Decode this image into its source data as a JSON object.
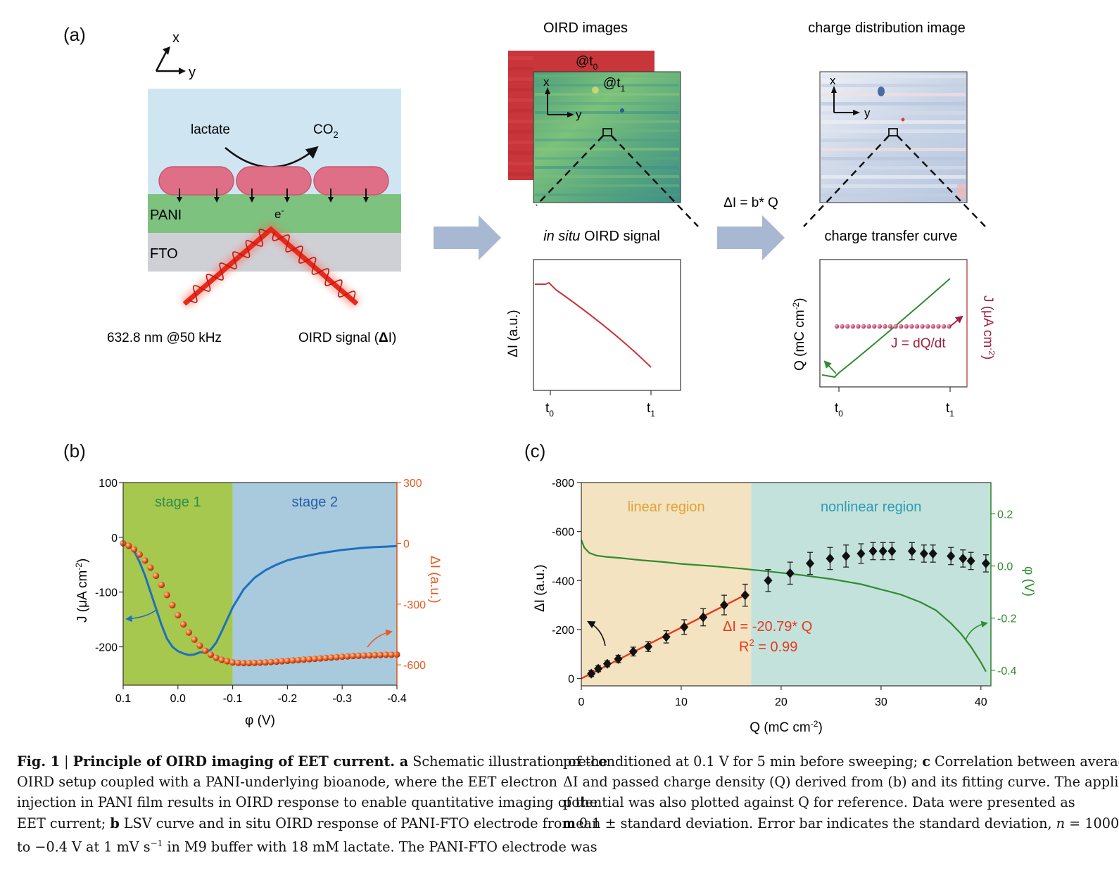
{
  "panel_a": {
    "label": "(a)",
    "axis_x": "x",
    "axis_y": "y",
    "lactate": "lactate",
    "co2": "CO",
    "co2_sub": "2",
    "pani": "PANI",
    "fto": "FTO",
    "electron": "e",
    "electron_sup": "-",
    "laser": "632.8 nm @50 kHz",
    "signal": "OIRD signal (",
    "signal_delta": "Δ",
    "signal_i": "I)",
    "oird_images_title": "OIRD images",
    "t0_label": "@t",
    "t0_sub": "0",
    "t1_label": "@t",
    "t1_sub": "1",
    "insitu_italic": "in situ",
    "insitu_rest": " OIRD signal",
    "insitu_ylabel": "ΔI (a.u.)",
    "tick_t": "t",
    "tick_sub0": "0",
    "tick_sub1": "1",
    "equation": "ΔI = b* Q",
    "charge_title": "charge distribution image",
    "ct_title": "charge transfer curve",
    "ct_ylabel_left": "Q (mC cm",
    "ct_ylabel_left_sup": "-2",
    "ct_ylabel_left_end": ")",
    "ct_ylabel_right": "J (μA cm",
    "ct_ylabel_right_sup": "-2",
    "ct_ylabel_right_end": ")",
    "j_eq": "J = dQ/dt",
    "colors": {
      "water": "#cfe6f2",
      "pani": "#7dc27e",
      "fto": "#cfd0d6",
      "bacteria": "#de6f86",
      "laser": "#e8281c",
      "arrow": "#a9b8d2",
      "oird_red": "#c8353a"
    }
  },
  "chart_b": {
    "label": "(b)",
    "type": "line",
    "xlabel": "φ (V)",
    "ylabel": "J (μA cm",
    "ylabel_sup": "-2",
    "ylabel_end": ")",
    "y2label": "ΔI (a.u.)",
    "stage1": "stage 1",
    "stage2": "stage 2",
    "xlim": [
      0.1,
      -0.4
    ],
    "ylim": [
      -270,
      100
    ],
    "y2lim": [
      -700,
      300
    ],
    "xticks": [
      "0.1",
      "0.0",
      "-0.1",
      "-0.2",
      "-0.3",
      "-0.4"
    ],
    "yticks": [
      "100",
      "0",
      "-100",
      "-200"
    ],
    "y2ticks": [
      "300",
      "0",
      "-300",
      "-600"
    ],
    "stage_boundary": -0.1,
    "series_J": {
      "x": [
        0.1,
        0.09,
        0.08,
        0.07,
        0.06,
        0.05,
        0.04,
        0.03,
        0.02,
        0.01,
        0.0,
        -0.01,
        -0.02,
        -0.03,
        -0.04,
        -0.05,
        -0.06,
        -0.07,
        -0.08,
        -0.09,
        -0.1,
        -0.12,
        -0.14,
        -0.16,
        -0.18,
        -0.2,
        -0.22,
        -0.24,
        -0.26,
        -0.28,
        -0.3,
        -0.32,
        -0.34,
        -0.36,
        -0.38,
        -0.4
      ],
      "y": [
        -10,
        -15,
        -25,
        -45,
        -70,
        -100,
        -130,
        -160,
        -185,
        -200,
        -208,
        -212,
        -215,
        -214,
        -210,
        -210,
        -205,
        -192,
        -172,
        -150,
        -128,
        -95,
        -74,
        -60,
        -50,
        -42,
        -37,
        -33,
        -29,
        -26,
        -23,
        -21,
        -19,
        -18,
        -17,
        -16
      ]
    },
    "series_dI": {
      "x": [
        0.1,
        0.09,
        0.08,
        0.07,
        0.06,
        0.05,
        0.04,
        0.03,
        0.02,
        0.01,
        0.0,
        -0.01,
        -0.02,
        -0.03,
        -0.04,
        -0.05,
        -0.06,
        -0.07,
        -0.08,
        -0.09,
        -0.1,
        -0.11,
        -0.12,
        -0.13,
        -0.14,
        -0.15,
        -0.16,
        -0.17,
        -0.18,
        -0.19,
        -0.2,
        -0.21,
        -0.22,
        -0.23,
        -0.24,
        -0.25,
        -0.26,
        -0.27,
        -0.28,
        -0.29,
        -0.3,
        -0.31,
        -0.32,
        -0.33,
        -0.34,
        -0.35,
        -0.36,
        -0.37,
        -0.38,
        -0.39,
        -0.4
      ],
      "y": [
        0,
        -12,
        -30,
        -55,
        -85,
        -120,
        -160,
        -205,
        -255,
        -305,
        -355,
        -400,
        -440,
        -475,
        -505,
        -530,
        -550,
        -565,
        -575,
        -582,
        -588,
        -590,
        -591,
        -591,
        -590,
        -589,
        -588,
        -586,
        -584,
        -582,
        -580,
        -578,
        -576,
        -574,
        -572,
        -570,
        -568,
        -566,
        -564,
        -562,
        -560,
        -558,
        -556,
        -555,
        -554,
        -553,
        -552,
        -551,
        -550,
        -550,
        -549
      ]
    },
    "colors": {
      "stage1_bg": "#a6c84e",
      "stage2_bg": "#a8cadc",
      "J": "#1f6fbf",
      "dI": "#e85a20",
      "stage1_text": "#2c8c4e",
      "stage2_text": "#2460a8"
    }
  },
  "chart_c": {
    "label": "(c)",
    "type": "scatter",
    "xlabel": "Q (mC cm",
    "xlabel_sup": "-2",
    "xlabel_end": ")",
    "ylabel": "ΔI (a.u.)",
    "y2label": "φ (V)",
    "linear_region": "linear region",
    "nonlinear_region": "nonlinear region",
    "fit_label": "ΔI = -20.79* Q",
    "r2_label": "R",
    "r2_sup": "2",
    "r2_value": " = 0.99",
    "xlim": [
      0,
      41
    ],
    "ylim": [
      30,
      -800
    ],
    "y2lim": [
      -0.46,
      0.32
    ],
    "xticks": [
      "0",
      "10",
      "20",
      "30",
      "40"
    ],
    "yticks": [
      "-800",
      "-600",
      "-400",
      "-200",
      "0"
    ],
    "y2ticks": [
      "0.2",
      "0.0",
      "-0.2",
      "-0.4"
    ],
    "region_boundary": 17,
    "points": {
      "x": [
        1,
        1.7,
        2.6,
        3.7,
        5.2,
        6.7,
        8.5,
        10.3,
        12.2,
        14.3,
        16.4,
        18.7,
        20.9,
        22.9,
        24.9,
        26.5,
        28.0,
        29.2,
        30.2,
        31.1,
        33.1,
        34.3,
        35.2,
        37.0,
        38.2,
        39.0,
        40.5
      ],
      "y": [
        -20,
        -40,
        -60,
        -80,
        -110,
        -130,
        -170,
        -210,
        -250,
        -300,
        -340,
        -400,
        -430,
        -470,
        -490,
        -500,
        -510,
        -520,
        -520,
        -520,
        -520,
        -510,
        -510,
        -500,
        -490,
        -480,
        -470
      ],
      "err": [
        12,
        12,
        12,
        15,
        18,
        20,
        25,
        30,
        35,
        40,
        45,
        45,
        45,
        45,
        45,
        45,
        40,
        35,
        35,
        35,
        35,
        35,
        35,
        35,
        35,
        35,
        35
      ]
    },
    "fit": {
      "slope": -20.79,
      "x": [
        0,
        16.5
      ]
    },
    "phi_curve": {
      "x": [
        0,
        0.3,
        0.8,
        1.5,
        2.5,
        4,
        6,
        8,
        10,
        13,
        16,
        19,
        22,
        25,
        28,
        30,
        32,
        34,
        35.5,
        37,
        38,
        39,
        40,
        40.5
      ],
      "y": [
        0.1,
        0.07,
        0.05,
        0.04,
        0.035,
        0.03,
        0.022,
        0.016,
        0.008,
        0.0,
        -0.01,
        -0.022,
        -0.035,
        -0.05,
        -0.07,
        -0.09,
        -0.11,
        -0.14,
        -0.17,
        -0.22,
        -0.26,
        -0.31,
        -0.37,
        -0.405
      ]
    },
    "colors": {
      "linear_bg": "#f4e3c1",
      "nonlinear_bg": "#c3e2db",
      "points": "#111111",
      "fit": "#e8381c",
      "phi": "#2f8c2f",
      "linear_text": "#e0a23a",
      "nonlinear_text": "#2e9bb5",
      "fit_text": "#e8381c"
    }
  },
  "caption": {
    "left": [
      {
        "b": "Fig. 1",
        "t": " | ",
        "b2": "Principle of OIRD imaging of EET current. a",
        "t2": " Schematic illustration of the"
      },
      {
        "t": "OIRD setup coupled with a PANI-underlying bioanode, where the EET electron"
      },
      {
        "t": "injection in PANI film results in OIRD response to enable quantitative imaging of the"
      },
      {
        "t": "EET current; ",
        "b2": "b",
        "t2": " LSV curve and in situ OIRD response of PANI-FTO electrode from 0.1"
      },
      {
        "t": "to −0.4 V at 1 mV s",
        "sup": "−1",
        "t2": " in M9 buffer with 18 mM lactate. The PANI-FTO electrode was"
      }
    ],
    "right": [
      {
        "t": "pre-conditioned at 0.1 V for 5 min before sweeping; ",
        "b2": "c",
        "t2": " Correlation between averaged"
      },
      {
        "t": "ΔI and passed charge density (Q) derived from (b) and its fitting curve. The applied"
      },
      {
        "t": "potential was also plotted against Q for reference. Data were presented as"
      },
      {
        "t": "mean ± standard deviation. Error bar indicates the standard deviation, ",
        "i": "n",
        "t2": " = 1000."
      }
    ]
  }
}
